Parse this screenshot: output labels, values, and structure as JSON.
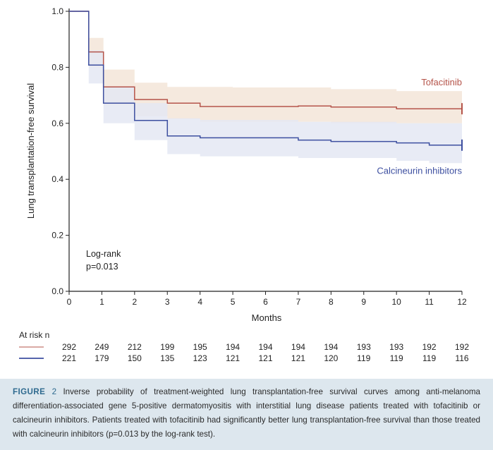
{
  "chart_data": {
    "type": "line",
    "subtype": "kaplan-meier step curves with confidence bands",
    "xlabel": "Months",
    "ylabel": "Lung transplantation-free survival",
    "xlim": [
      0,
      12
    ],
    "ylim": [
      0,
      1.0
    ],
    "x_ticks": [
      "0",
      "1",
      "2",
      "3",
      "4",
      "5",
      "6",
      "7",
      "8",
      "9",
      "10",
      "11",
      "12"
    ],
    "y_ticks": [
      "0.0",
      "0.2",
      "0.4",
      "0.6",
      "0.8",
      "1.0"
    ],
    "grid": false,
    "annotation": [
      "Log-rank",
      "p=0.013"
    ],
    "series": [
      {
        "name": "Tofacitinib",
        "color": "#b5544a",
        "band_color": "#f3e5d8",
        "steps": [
          [
            0,
            1.0
          ],
          [
            0.6,
            0.855
          ],
          [
            1.05,
            0.73
          ],
          [
            2.0,
            0.685
          ],
          [
            3.0,
            0.672
          ],
          [
            4.0,
            0.66
          ],
          [
            7.0,
            0.662
          ],
          [
            8.0,
            0.658
          ],
          [
            10.0,
            0.652
          ],
          [
            12.0,
            0.652
          ]
        ],
        "band_upper": [
          [
            0,
            1.0
          ],
          [
            0.6,
            0.905
          ],
          [
            1.05,
            0.792
          ],
          [
            2.0,
            0.745
          ],
          [
            3.0,
            0.73
          ],
          [
            5.0,
            0.728
          ],
          [
            8.0,
            0.722
          ],
          [
            10.0,
            0.715
          ],
          [
            12.0,
            0.715
          ]
        ],
        "band_lower": [
          [
            0,
            1.0
          ],
          [
            0.6,
            0.8
          ],
          [
            1.05,
            0.665
          ],
          [
            2.0,
            0.625
          ],
          [
            3.0,
            0.615
          ],
          [
            4.0,
            0.605
          ],
          [
            8.0,
            0.6
          ],
          [
            12.0,
            0.595
          ]
        ]
      },
      {
        "name": "Calcineurin inhibitors",
        "color": "#3d4fa0",
        "band_color": "#e4e8f3",
        "steps": [
          [
            0,
            1.0
          ],
          [
            0.6,
            0.808
          ],
          [
            1.05,
            0.672
          ],
          [
            2.0,
            0.61
          ],
          [
            3.0,
            0.555
          ],
          [
            4.0,
            0.548
          ],
          [
            7.0,
            0.54
          ],
          [
            8.0,
            0.535
          ],
          [
            10.0,
            0.53
          ],
          [
            11.0,
            0.522
          ],
          [
            12.0,
            0.522
          ]
        ],
        "band_upper": [
          [
            0,
            1.0
          ],
          [
            0.6,
            0.86
          ],
          [
            1.05,
            0.732
          ],
          [
            2.0,
            0.672
          ],
          [
            3.0,
            0.618
          ],
          [
            4.0,
            0.612
          ],
          [
            7.0,
            0.605
          ],
          [
            10.0,
            0.6
          ],
          [
            12.0,
            0.598
          ]
        ],
        "band_lower": [
          [
            0,
            1.0
          ],
          [
            0.6,
            0.742
          ],
          [
            1.05,
            0.6
          ],
          [
            2.0,
            0.54
          ],
          [
            3.0,
            0.49
          ],
          [
            4.0,
            0.482
          ],
          [
            7.0,
            0.476
          ],
          [
            10.0,
            0.466
          ],
          [
            11.0,
            0.458
          ],
          [
            12.0,
            0.455
          ]
        ]
      }
    ],
    "risk_table": {
      "title": "At risk n",
      "rows": [
        {
          "series": "Tofacitinib",
          "color": "#b5544a",
          "counts": [
            292,
            249,
            212,
            199,
            195,
            194,
            194,
            194,
            194,
            193,
            193,
            192,
            192
          ]
        },
        {
          "series": "Calcineurin inhibitors",
          "color": "#3d4fa0",
          "counts": [
            221,
            179,
            150,
            135,
            123,
            121,
            121,
            121,
            120,
            119,
            119,
            119,
            116
          ]
        }
      ]
    }
  },
  "caption": {
    "label": "FIGURE",
    "number": "2",
    "text": "Inverse probability of treatment-weighted lung transplantation-free survival curves among anti-melanoma differentiation-associated gene 5-positive dermatomyositis with interstitial lung disease patients treated with tofacitinib or calcineurin inhibitors. Patients treated with tofacitinib had significantly better lung transplantation-free survival than those treated with calcineurin inhibitors (p=0.013 by the log-rank test)."
  }
}
